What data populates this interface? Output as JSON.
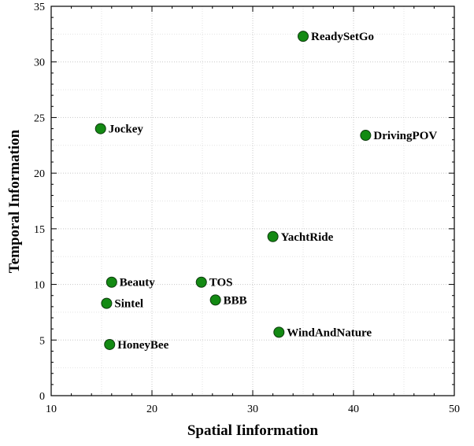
{
  "chart_data": {
    "type": "scatter",
    "title": "",
    "xlabel": "Spatial Iinformation",
    "ylabel": "Temporal Information",
    "xlim": [
      10,
      50
    ],
    "ylim": [
      0,
      35
    ],
    "xticks": [
      10,
      20,
      30,
      40,
      50
    ],
    "yticks": [
      0,
      5,
      10,
      15,
      20,
      25,
      30,
      35
    ],
    "grid": true,
    "legend": "none",
    "marker_color": "#138a13",
    "points": [
      {
        "name": "ReadySetGo",
        "x": 35.0,
        "y": 32.3
      },
      {
        "name": "DrivingPOV",
        "x": 41.2,
        "y": 23.4
      },
      {
        "name": "Jockey",
        "x": 14.9,
        "y": 24.0
      },
      {
        "name": "YachtRide",
        "x": 32.0,
        "y": 14.3
      },
      {
        "name": "Beauty",
        "x": 16.0,
        "y": 10.2
      },
      {
        "name": "TOS",
        "x": 24.9,
        "y": 10.2
      },
      {
        "name": "BBB",
        "x": 26.3,
        "y": 8.6
      },
      {
        "name": "Sintel",
        "x": 15.5,
        "y": 8.3
      },
      {
        "name": "WindAndNature",
        "x": 32.6,
        "y": 5.7
      },
      {
        "name": "HoneyBee",
        "x": 15.8,
        "y": 4.6
      }
    ]
  }
}
